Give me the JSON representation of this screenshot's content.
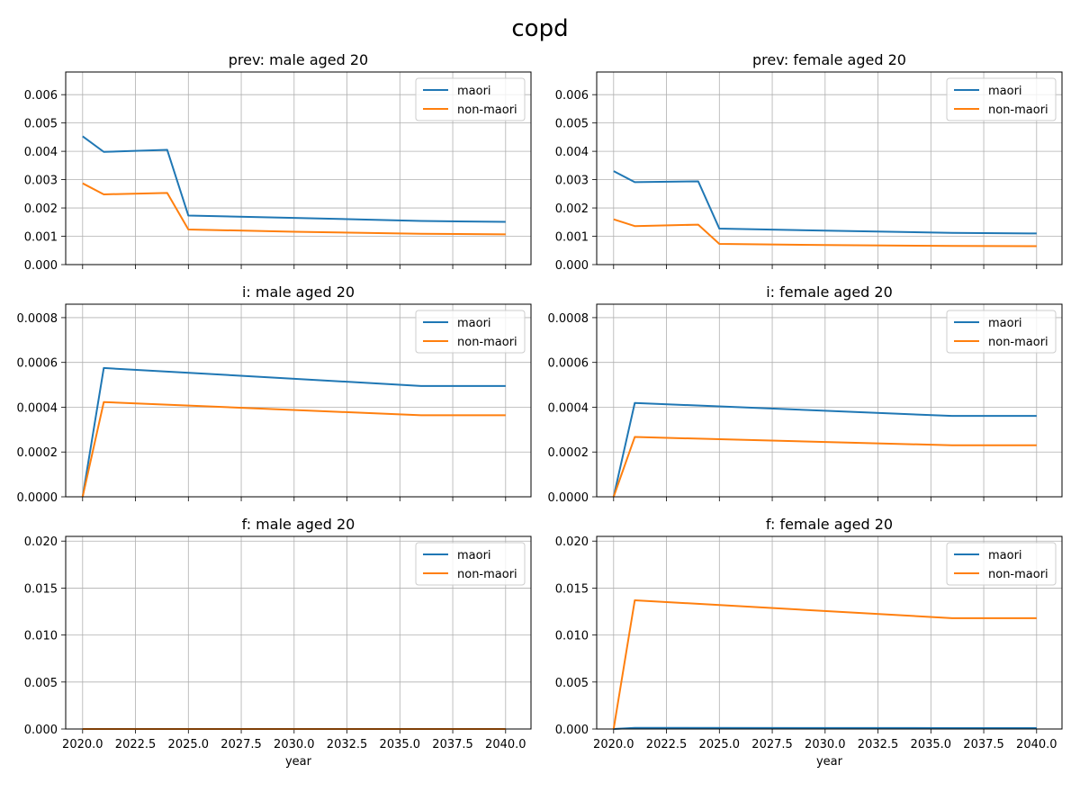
{
  "figure": {
    "title": "copd"
  },
  "chart_data": [
    {
      "type": "line",
      "title": "prev: male aged 20",
      "xlabel": "",
      "ylabel": "",
      "xlim": [
        2019.2,
        2041.2
      ],
      "ylim": [
        0,
        0.0068
      ],
      "xticks": [
        2020.0,
        2022.5,
        2025.0,
        2027.5,
        2030.0,
        2032.5,
        2035.0,
        2037.5,
        2040.0
      ],
      "xtick_labels": [
        "",
        "",
        "",
        "",
        "",
        "",
        "",
        "",
        ""
      ],
      "yticks": [
        0,
        0.001,
        0.002,
        0.003,
        0.004,
        0.005,
        0.006
      ],
      "ytick_labels": [
        "0.000",
        "0.001",
        "0.002",
        "0.003",
        "0.004",
        "0.005",
        "0.006"
      ],
      "grid": true,
      "legend": "top-right",
      "series": [
        {
          "name": "maori",
          "color": "#1f77b4",
          "x": [
            2020,
            2021,
            2024,
            2025,
            2030,
            2036,
            2040
          ],
          "y": [
            0.00453,
            0.00398,
            0.00405,
            0.00173,
            0.00165,
            0.00154,
            0.00151
          ]
        },
        {
          "name": "non-maori",
          "color": "#ff7f0e",
          "x": [
            2020,
            2021,
            2024,
            2025,
            2030,
            2036,
            2040
          ],
          "y": [
            0.00287,
            0.00248,
            0.00253,
            0.00124,
            0.00116,
            0.00109,
            0.00107
          ]
        }
      ]
    },
    {
      "type": "line",
      "title": "prev: female aged 20",
      "xlabel": "",
      "ylabel": "",
      "xlim": [
        2019.2,
        2041.2
      ],
      "ylim": [
        0,
        0.0068
      ],
      "xticks": [
        2020.0,
        2022.5,
        2025.0,
        2027.5,
        2030.0,
        2032.5,
        2035.0,
        2037.5,
        2040.0
      ],
      "xtick_labels": [
        "",
        "",
        "",
        "",
        "",
        "",
        "",
        "",
        ""
      ],
      "yticks": [
        0,
        0.001,
        0.002,
        0.003,
        0.004,
        0.005,
        0.006
      ],
      "ytick_labels": [
        "0.000",
        "0.001",
        "0.002",
        "0.003",
        "0.004",
        "0.005",
        "0.006"
      ],
      "grid": true,
      "legend": "top-right",
      "series": [
        {
          "name": "maori",
          "color": "#1f77b4",
          "x": [
            2020,
            2021,
            2024,
            2025,
            2030,
            2036,
            2040
          ],
          "y": [
            0.0033,
            0.00291,
            0.00294,
            0.00127,
            0.0012,
            0.00112,
            0.0011
          ]
        },
        {
          "name": "non-maori",
          "color": "#ff7f0e",
          "x": [
            2020,
            2021,
            2024,
            2025,
            2030,
            2036,
            2040
          ],
          "y": [
            0.0016,
            0.00136,
            0.00141,
            0.00073,
            0.00069,
            0.00066,
            0.00065
          ]
        }
      ]
    },
    {
      "type": "line",
      "title": "i: male aged 20",
      "xlabel": "",
      "ylabel": "",
      "xlim": [
        2019.2,
        2041.2
      ],
      "ylim": [
        0,
        0.00086
      ],
      "xticks": [
        2020.0,
        2022.5,
        2025.0,
        2027.5,
        2030.0,
        2032.5,
        2035.0,
        2037.5,
        2040.0
      ],
      "xtick_labels": [
        "",
        "",
        "",
        "",
        "",
        "",
        "",
        "",
        ""
      ],
      "yticks": [
        0,
        0.0002,
        0.0004,
        0.0006,
        0.0008
      ],
      "ytick_labels": [
        "0.0000",
        "0.0002",
        "0.0004",
        "0.0006",
        "0.0008"
      ],
      "grid": true,
      "legend": "top-right",
      "series": [
        {
          "name": "maori",
          "color": "#1f77b4",
          "x": [
            2020,
            2021,
            2036,
            2040
          ],
          "y": [
            0.0,
            0.000575,
            0.000495,
            0.000495
          ]
        },
        {
          "name": "non-maori",
          "color": "#ff7f0e",
          "x": [
            2020,
            2021,
            2036,
            2040
          ],
          "y": [
            0.0,
            0.000423,
            0.000364,
            0.000364
          ]
        }
      ]
    },
    {
      "type": "line",
      "title": "i: female aged 20",
      "xlabel": "",
      "ylabel": "",
      "xlim": [
        2019.2,
        2041.2
      ],
      "ylim": [
        0,
        0.00086
      ],
      "xticks": [
        2020.0,
        2022.5,
        2025.0,
        2027.5,
        2030.0,
        2032.5,
        2035.0,
        2037.5,
        2040.0
      ],
      "xtick_labels": [
        "",
        "",
        "",
        "",
        "",
        "",
        "",
        "",
        ""
      ],
      "yticks": [
        0,
        0.0002,
        0.0004,
        0.0006,
        0.0008
      ],
      "ytick_labels": [
        "0.0000",
        "0.0002",
        "0.0004",
        "0.0006",
        "0.0008"
      ],
      "grid": true,
      "legend": "top-right",
      "series": [
        {
          "name": "maori",
          "color": "#1f77b4",
          "x": [
            2020,
            2021,
            2036,
            2040
          ],
          "y": [
            0.0,
            0.000419,
            0.000361,
            0.000361
          ]
        },
        {
          "name": "non-maori",
          "color": "#ff7f0e",
          "x": [
            2020,
            2021,
            2036,
            2040
          ],
          "y": [
            0.0,
            0.000267,
            0.00023,
            0.00023
          ]
        }
      ]
    },
    {
      "type": "line",
      "title": "f: male aged 20",
      "xlabel": "year",
      "ylabel": "",
      "xlim": [
        2019.2,
        2041.2
      ],
      "ylim": [
        0,
        0.0205
      ],
      "xticks": [
        2020.0,
        2022.5,
        2025.0,
        2027.5,
        2030.0,
        2032.5,
        2035.0,
        2037.5,
        2040.0
      ],
      "xtick_labels": [
        "2020.0",
        "2022.5",
        "2025.0",
        "2027.5",
        "2030.0",
        "2032.5",
        "2035.0",
        "2037.5",
        "2040.0"
      ],
      "yticks": [
        0,
        0.005,
        0.01,
        0.015,
        0.02
      ],
      "ytick_labels": [
        "0.000",
        "0.005",
        "0.010",
        "0.015",
        "0.020"
      ],
      "grid": true,
      "legend": "top-right",
      "series": [
        {
          "name": "maori",
          "color": "#1f77b4",
          "x": [
            2020,
            2040
          ],
          "y": [
            0.0,
            0.0
          ]
        },
        {
          "name": "non-maori",
          "color": "#ff7f0e",
          "x": [
            2020,
            2040
          ],
          "y": [
            0.0,
            0.0
          ]
        }
      ]
    },
    {
      "type": "line",
      "title": "f: female aged 20",
      "xlabel": "year",
      "ylabel": "",
      "xlim": [
        2019.2,
        2041.2
      ],
      "ylim": [
        0,
        0.0205
      ],
      "xticks": [
        2020.0,
        2022.5,
        2025.0,
        2027.5,
        2030.0,
        2032.5,
        2035.0,
        2037.5,
        2040.0
      ],
      "xtick_labels": [
        "2020.0",
        "2022.5",
        "2025.0",
        "2027.5",
        "2030.0",
        "2032.5",
        "2035.0",
        "2037.5",
        "2040.0"
      ],
      "yticks": [
        0,
        0.005,
        0.01,
        0.015,
        0.02
      ],
      "ytick_labels": [
        "0.000",
        "0.005",
        "0.010",
        "0.015",
        "0.020"
      ],
      "grid": true,
      "legend": "top-right",
      "series": [
        {
          "name": "maori",
          "color": "#1f77b4",
          "x": [
            2020,
            2021,
            2036,
            2040
          ],
          "y": [
            0.0,
            0.00012,
            0.0001,
            0.0001
          ]
        },
        {
          "name": "non-maori",
          "color": "#ff7f0e",
          "x": [
            2020,
            2021,
            2036,
            2040
          ],
          "y": [
            0.0,
            0.0137,
            0.0118,
            0.0118
          ]
        }
      ]
    }
  ]
}
